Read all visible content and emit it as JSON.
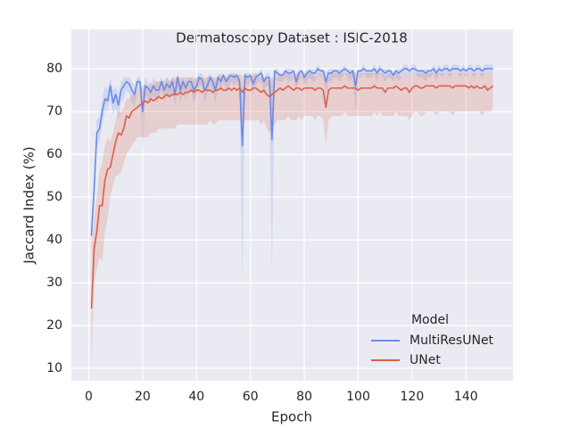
{
  "chart_data": {
    "type": "line",
    "title": "Dermatoscopy Dataset : ISIC-2018",
    "xlabel": "Epoch",
    "ylabel": "Jaccard Index (%)",
    "legend_title": "Model",
    "legend": "lower right",
    "grid": true,
    "xlim": [
      -6.45,
      157.45
    ],
    "ylim": [
      7.1,
      89.2
    ],
    "xticks": [
      0,
      20,
      40,
      60,
      80,
      100,
      120,
      140
    ],
    "yticks": [
      10,
      20,
      30,
      40,
      50,
      60,
      70,
      80
    ],
    "x": [
      1,
      2,
      3,
      4,
      5,
      6,
      7,
      8,
      9,
      10,
      11,
      12,
      13,
      14,
      15,
      16,
      17,
      18,
      19,
      20,
      21,
      22,
      23,
      24,
      25,
      26,
      27,
      28,
      29,
      30,
      31,
      32,
      33,
      34,
      35,
      36,
      37,
      38,
      39,
      40,
      41,
      42,
      43,
      44,
      45,
      46,
      47,
      48,
      49,
      50,
      51,
      52,
      53,
      54,
      55,
      56,
      57,
      58,
      59,
      60,
      61,
      62,
      63,
      64,
      65,
      66,
      67,
      68,
      69,
      70,
      71,
      72,
      73,
      74,
      75,
      76,
      77,
      78,
      79,
      80,
      81,
      82,
      83,
      84,
      85,
      86,
      87,
      88,
      89,
      90,
      91,
      92,
      93,
      94,
      95,
      96,
      97,
      98,
      99,
      100,
      101,
      102,
      103,
      104,
      105,
      106,
      107,
      108,
      109,
      110,
      111,
      112,
      113,
      114,
      115,
      116,
      117,
      118,
      119,
      120,
      121,
      122,
      123,
      124,
      125,
      126,
      127,
      128,
      129,
      130,
      131,
      132,
      133,
      134,
      135,
      136,
      137,
      138,
      139,
      140,
      141,
      142,
      143,
      144,
      145,
      146,
      147,
      148,
      149,
      150
    ],
    "series": [
      {
        "name": "MultiResUNet",
        "color": "#6a8ce8",
        "values": [
          41,
          52,
          65,
          66,
          70,
          73,
          72.5,
          76,
          72,
          74,
          71.5,
          75,
          76,
          77,
          76.5,
          75,
          74,
          77,
          77,
          70,
          76,
          75.5,
          74.5,
          76,
          75,
          75,
          77,
          75,
          76.5,
          75.5,
          77,
          74,
          78,
          75,
          77,
          75.5,
          77,
          77,
          75,
          76,
          78,
          77.5,
          75,
          76,
          78,
          77,
          75,
          78,
          77,
          78.5,
          77,
          78,
          78.5,
          78,
          78.5,
          77,
          62,
          78.5,
          78,
          78.5,
          76.5,
          78,
          78.5,
          79,
          77,
          78,
          78,
          63.5,
          79.5,
          79,
          78.5,
          78.5,
          79.5,
          79,
          79,
          79.5,
          77,
          79,
          79.5,
          78,
          79,
          79.5,
          79,
          79,
          80,
          79.5,
          79.5,
          77,
          79,
          79,
          79.5,
          79.5,
          79,
          79.5,
          80,
          79.5,
          79,
          79.5,
          76,
          79.5,
          79.5,
          80,
          79.5,
          79.5,
          79.5,
          80,
          79,
          80,
          79.5,
          79,
          79.5,
          79.5,
          78.5,
          79.5,
          79,
          79.5,
          80,
          80,
          79.5,
          80,
          80,
          79.5,
          79.5,
          79.5,
          79,
          79.5,
          79.5,
          80,
          79,
          80,
          79.5,
          80,
          80,
          79.5,
          80,
          80,
          80,
          79.5,
          80,
          79.5,
          80,
          80,
          79.5,
          80,
          80,
          79.5,
          80,
          80,
          80,
          80
        ],
        "lower": [
          38,
          48,
          62,
          63,
          67,
          70,
          70,
          73,
          69,
          71,
          68,
          72,
          73,
          75,
          74,
          72,
          71,
          75,
          75,
          60,
          74,
          73,
          72,
          74,
          72,
          73,
          75,
          72,
          74,
          73,
          75,
          71,
          76,
          72,
          75,
          73,
          75,
          75,
          72,
          74,
          76,
          76,
          72,
          74,
          76,
          75,
          72,
          76,
          75,
          77,
          75,
          76,
          77,
          76,
          77,
          75,
          30,
          77,
          76,
          77,
          74,
          76,
          77,
          77,
          75,
          76,
          76,
          32,
          78,
          77,
          77,
          77,
          78,
          77,
          77,
          78,
          75,
          77,
          78,
          76,
          77,
          78,
          77,
          77,
          79,
          78,
          78,
          74,
          77,
          77,
          78,
          78,
          77,
          78,
          79,
          78,
          77,
          78,
          70,
          78,
          78,
          79,
          78,
          78,
          78,
          79,
          77,
          79,
          78,
          77,
          78,
          78,
          77,
          78,
          77,
          78,
          79,
          79,
          78,
          79,
          79,
          78,
          78,
          78,
          77,
          78,
          78,
          79,
          77,
          79,
          78,
          79,
          79,
          78,
          79,
          79,
          79,
          78,
          79,
          78,
          79,
          79,
          78,
          79,
          79,
          78,
          79,
          79,
          79,
          79
        ],
        "upper": [
          44,
          56,
          68,
          69,
          73,
          76,
          75,
          78,
          75,
          76,
          74,
          77,
          78,
          78,
          78,
          77,
          76,
          78,
          78,
          75,
          78,
          77,
          76,
          78,
          77,
          77,
          78,
          77,
          78,
          77,
          78,
          77,
          79,
          77,
          78,
          77,
          78,
          78,
          77,
          78,
          79,
          79,
          77,
          78,
          79,
          78,
          77,
          79,
          78,
          79,
          78,
          79,
          79,
          79,
          79,
          78,
          75,
          79,
          79,
          79,
          78,
          79,
          79,
          80,
          78,
          79,
          79,
          76,
          80,
          80,
          79,
          79,
          80,
          80,
          80,
          80,
          78,
          80,
          80,
          79,
          80,
          80,
          80,
          80,
          81,
          80,
          80,
          79,
          80,
          80,
          80,
          80,
          80,
          80,
          81,
          80,
          80,
          80,
          79,
          80,
          80,
          81,
          80,
          80,
          80,
          81,
          80,
          81,
          80,
          80,
          80,
          80,
          79,
          80,
          80,
          80,
          81,
          81,
          80,
          81,
          81,
          80,
          80,
          80,
          80,
          80,
          80,
          81,
          80,
          81,
          80,
          81,
          81,
          80,
          81,
          81,
          81,
          80,
          81,
          80,
          81,
          81,
          80,
          81,
          81,
          80,
          81,
          81,
          81,
          81
        ]
      },
      {
        "name": "UNet",
        "color": "#dc5f48",
        "values": [
          24,
          38,
          42,
          48,
          48,
          54,
          56.5,
          57,
          60,
          63,
          65,
          64.5,
          66,
          69,
          68.5,
          70,
          70.5,
          71,
          71.5,
          72,
          72.5,
          72,
          73,
          72.5,
          73,
          73.5,
          73,
          73.5,
          74,
          73.5,
          74,
          74,
          74,
          74.5,
          74,
          74.5,
          74.5,
          75,
          74.5,
          75,
          75,
          74.5,
          75,
          75,
          75,
          74.5,
          75,
          75,
          75.5,
          75,
          75,
          75.5,
          75,
          75.5,
          75,
          75.5,
          74.5,
          75.5,
          75,
          75,
          75.5,
          75.5,
          75,
          74.5,
          75,
          74,
          73.5,
          74,
          74.5,
          75,
          75.5,
          75,
          75.5,
          76,
          75.5,
          75,
          75.5,
          75.5,
          75,
          75.5,
          75.5,
          75.5,
          75.5,
          75,
          75.5,
          75.5,
          75,
          71,
          75,
          75.5,
          75.5,
          75.5,
          75.5,
          75.5,
          76,
          75.5,
          75.5,
          75.5,
          75.5,
          75,
          75.5,
          75.5,
          75.5,
          75.5,
          75.5,
          76,
          75.5,
          75.5,
          75.5,
          74.5,
          75.5,
          75.5,
          75.5,
          76,
          75.5,
          75,
          75.5,
          75.5,
          74.5,
          75.5,
          76,
          76,
          75.5,
          75.5,
          76,
          76,
          76,
          76,
          75.5,
          76,
          76,
          76,
          76,
          76,
          75.5,
          76,
          76,
          76,
          76,
          76,
          75.5,
          76,
          75.5,
          76,
          75.5,
          75.5,
          76,
          75,
          75.5,
          76
        ],
        "lower": [
          10,
          30,
          33,
          36,
          35,
          42,
          45,
          50,
          53,
          55,
          55,
          56,
          58,
          60,
          61,
          62,
          63,
          64,
          64,
          64,
          64,
          64,
          65,
          65,
          65,
          66,
          66,
          66,
          66,
          66,
          66,
          66,
          67,
          67,
          67,
          67,
          67,
          67,
          67,
          67,
          67,
          67,
          67,
          67,
          68,
          67,
          67,
          68,
          68,
          68,
          68,
          68,
          68,
          68,
          68,
          68,
          67,
          68,
          68,
          68,
          68,
          68,
          68,
          67,
          68,
          66,
          65,
          66,
          67,
          68,
          68,
          68,
          68,
          69,
          68,
          68,
          68,
          69,
          68,
          69,
          69,
          69,
          69,
          68,
          69,
          69,
          68,
          62,
          68,
          69,
          69,
          69,
          69,
          69,
          70,
          69,
          69,
          69,
          69,
          69,
          69,
          69,
          69,
          69,
          69,
          70,
          69,
          70,
          69,
          69,
          69,
          69,
          69,
          70,
          69,
          69,
          69,
          69,
          68,
          69,
          70,
          70,
          69,
          69,
          70,
          70,
          70,
          70,
          69,
          70,
          70,
          70,
          70,
          70,
          69,
          70,
          70,
          70,
          70,
          70,
          70,
          70,
          70,
          70,
          70,
          69,
          70,
          70,
          70,
          71
        ],
        "upper": [
          38,
          45,
          50,
          56,
          58,
          62,
          64,
          63,
          65,
          68,
          70,
          70,
          71,
          73,
          73,
          74,
          74,
          75,
          75,
          76,
          76,
          76,
          77,
          76,
          77,
          77,
          77,
          77,
          78,
          77,
          78,
          78,
          78,
          78,
          78,
          78,
          78,
          78,
          78,
          78,
          78,
          78,
          78,
          78,
          78,
          78,
          78,
          78,
          79,
          78,
          78,
          79,
          78,
          79,
          78,
          79,
          78,
          79,
          78,
          78,
          79,
          79,
          78,
          78,
          78,
          78,
          77,
          78,
          78,
          78,
          79,
          78,
          79,
          79,
          79,
          78,
          79,
          79,
          78,
          79,
          79,
          79,
          79,
          78,
          79,
          79,
          78,
          77,
          78,
          79,
          79,
          79,
          79,
          79,
          79,
          79,
          79,
          79,
          79,
          78,
          79,
          79,
          79,
          79,
          79,
          79,
          79,
          79,
          79,
          78,
          79,
          79,
          79,
          79,
          79,
          78,
          79,
          79,
          78,
          79,
          79,
          79,
          79,
          79,
          79,
          79,
          79,
          79,
          79,
          79,
          79,
          79,
          79,
          79,
          79,
          79,
          79,
          79,
          79,
          79,
          79,
          79,
          79,
          79,
          79,
          79,
          79,
          79,
          79,
          79
        ]
      }
    ]
  }
}
